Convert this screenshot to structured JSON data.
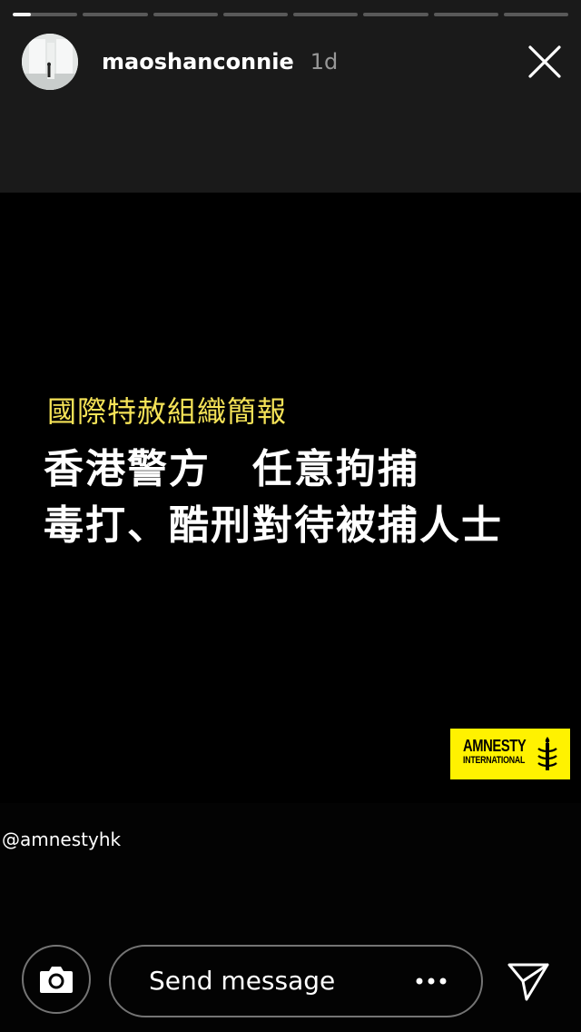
{
  "story_progress": {
    "segment_count": 8,
    "current_index": 0,
    "current_fill": 0.28
  },
  "header": {
    "username": "maoshanconnie",
    "time": "1d",
    "avatar_icon": "avatar-photo",
    "close_icon": "close-icon"
  },
  "story": {
    "title": "國際特赦組織簡報",
    "line1": "香港警方　任意拘捕",
    "line2": "毒打、酷刑對待被捕人士",
    "logo": {
      "line1": "AMNESTY",
      "line2": "INTERNATIONAL",
      "background": "#fff200"
    }
  },
  "caption": {
    "mention": "@amnestyhk"
  },
  "footer": {
    "camera_icon": "camera-icon",
    "message_placeholder": "Send message",
    "more_icon": "more-dots-icon",
    "send_icon": "send-icon"
  },
  "colors": {
    "title_yellow": "#f4e257",
    "top_background": "#1a1a1a"
  }
}
